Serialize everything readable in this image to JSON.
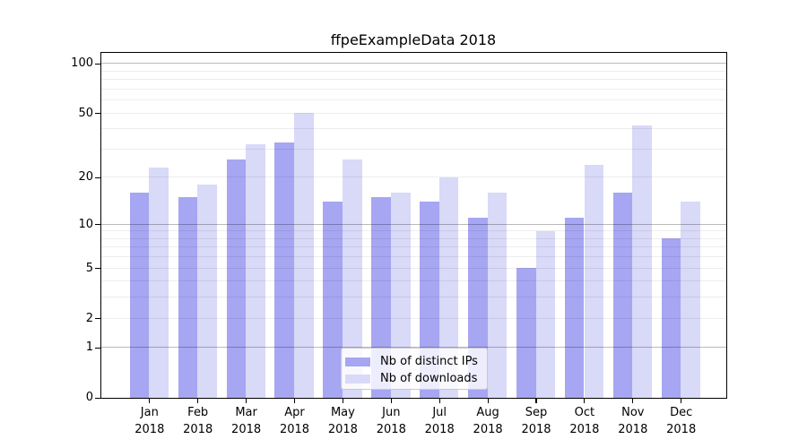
{
  "chart": {
    "title": "ffpeExampleData 2018"
  },
  "chart_data": {
    "type": "bar",
    "title": "ffpeExampleData 2018",
    "year_label": "2018",
    "categories": [
      "Jan",
      "Feb",
      "Mar",
      "Apr",
      "May",
      "Jun",
      "Jul",
      "Aug",
      "Sep",
      "Oct",
      "Nov",
      "Dec"
    ],
    "series": [
      {
        "name": "Nb of distinct IPs",
        "color": "#a6a6f2",
        "values": [
          16,
          15,
          26,
          33,
          14,
          15,
          14,
          11,
          5,
          11,
          16,
          8
        ]
      },
      {
        "name": "Nb of downloads",
        "color": "#d9d9f8",
        "values": [
          23,
          18,
          32,
          50,
          26,
          16,
          20,
          16,
          9,
          24,
          42,
          14
        ]
      }
    ],
    "xlabel": "",
    "ylabel": "",
    "yscale": "log1p",
    "ylim": [
      0,
      116
    ],
    "yticks": [
      0,
      1,
      2,
      5,
      10,
      20,
      50,
      100
    ],
    "major_gridlines": [
      1,
      10,
      100
    ],
    "minor_gridlines": [
      2,
      3,
      4,
      5,
      6,
      7,
      8,
      9,
      20,
      30,
      40,
      50,
      60,
      70,
      80,
      90
    ],
    "grid": "on",
    "legend_position": "lower-center-right-inside",
    "colors": {
      "background": "#ffffff",
      "axis": "#000000",
      "text": "#000000",
      "grid_minor": "rgba(0,0,0,0.07)",
      "grid_major": "rgba(0,0,0,0.27)",
      "legend_bg": "rgba(255,255,255,0.8)",
      "legend_border": "#c9c9c9"
    }
  }
}
